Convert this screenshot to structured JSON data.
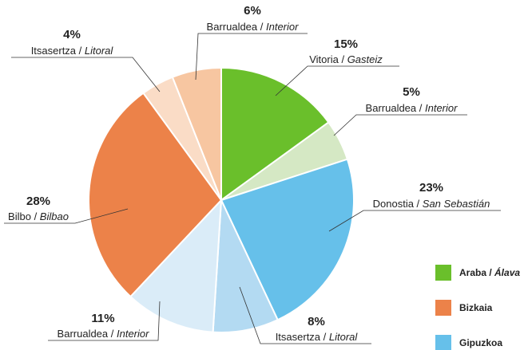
{
  "chart_data": {
    "type": "pie",
    "categories": [
      [
        "Vitoria / ",
        "Gasteiz"
      ],
      [
        "Barrualdea / ",
        "Interior"
      ],
      [
        "Donostia / ",
        "San Sebastián"
      ],
      [
        "Itsasertza / ",
        "Litoral"
      ],
      [
        "Barrualdea / ",
        "Interior"
      ],
      [
        "Bilbo / ",
        "Bilbao"
      ],
      [
        "Itsasertza / ",
        "Litoral"
      ],
      [
        "Barrualdea / ",
        "Interior"
      ]
    ],
    "values": [
      15,
      5,
      23,
      8,
      11,
      28,
      4,
      6
    ],
    "value_labels": [
      "15%",
      "5%",
      "23%",
      "8%",
      "11%",
      "28%",
      "4%",
      "6%"
    ],
    "colors": [
      "#6abf2b",
      "#d5e8c4",
      "#66c0ea",
      "#b3daf2",
      "#daecf8",
      "#ec8249",
      "#fadcc6",
      "#f7c6a1"
    ],
    "legend": [
      {
        "label": [
          "Araba / ",
          "Álava"
        ],
        "color": "#6abf2b"
      },
      {
        "label": [
          "Bizkaia",
          ""
        ],
        "color": "#ec8249"
      },
      {
        "label": [
          "Gipuzkoa",
          ""
        ],
        "color": "#66c0ea"
      }
    ]
  }
}
